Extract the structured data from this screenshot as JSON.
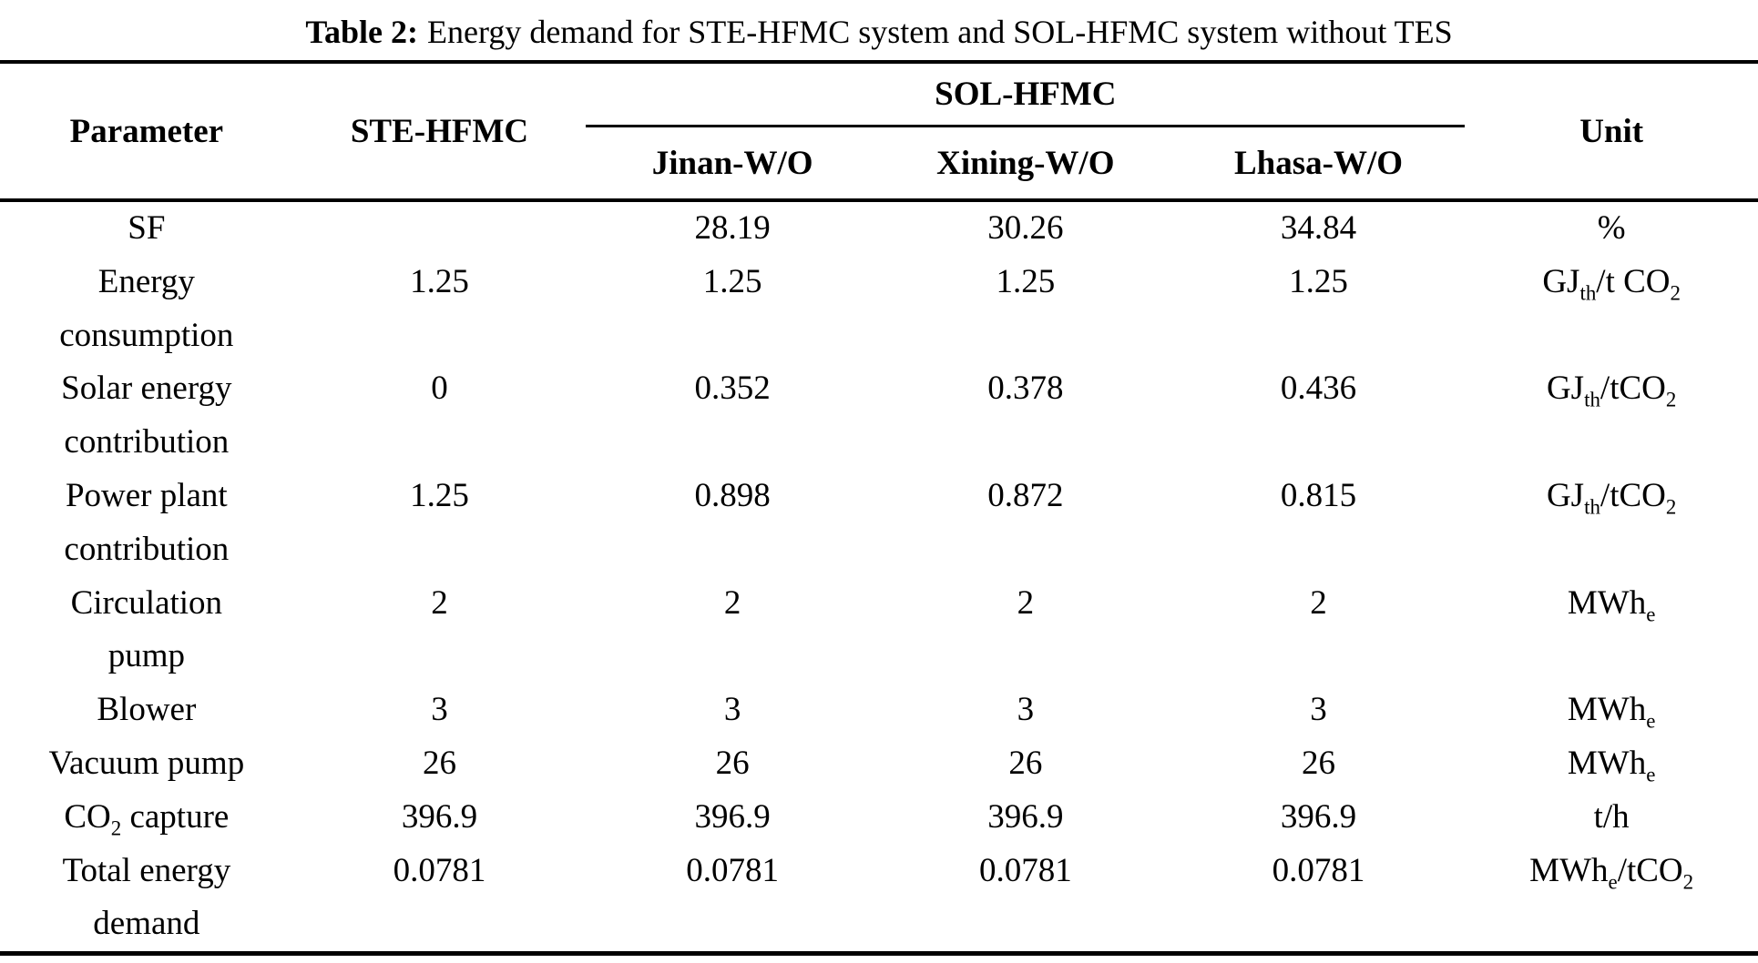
{
  "page": {
    "background": "#ffffff",
    "text_color": "#000000"
  },
  "caption": {
    "label": "Table 2:",
    "text": "Energy demand for STE-HFMC system and SOL-HFMC system without TES"
  },
  "table": {
    "columns": {
      "parameter": "Parameter",
      "ste": "STE-HFMC",
      "sol_group": "SOL-HFMC",
      "sol_subcolumns": [
        "Jinan-W/O",
        "Xining-W/O",
        "Lhasa-W/O"
      ],
      "unit": "Unit"
    },
    "rows": [
      {
        "label": "SF",
        "values": [
          "",
          "28.19",
          "30.26",
          "34.84"
        ],
        "unit": [
          {
            "t": "%"
          }
        ]
      },
      {
        "label": "Energy\nconsumption",
        "values": [
          "1.25",
          "1.25",
          "1.25",
          "1.25"
        ],
        "unit": [
          {
            "t": "GJ"
          },
          {
            "t": "th",
            "sub": true
          },
          {
            "t": "/t CO"
          },
          {
            "t": "2",
            "sub": true
          }
        ]
      },
      {
        "label": "Solar energy\ncontribution",
        "values": [
          "0",
          "0.352",
          "0.378",
          "0.436"
        ],
        "unit": [
          {
            "t": "GJ"
          },
          {
            "t": "th",
            "sub": true
          },
          {
            "t": "/tCO"
          },
          {
            "t": "2",
            "sub": true
          }
        ]
      },
      {
        "label": "Power plant\ncontribution",
        "values": [
          "1.25",
          "0.898",
          "0.872",
          "0.815"
        ],
        "unit": [
          {
            "t": "GJ"
          },
          {
            "t": "th",
            "sub": true
          },
          {
            "t": "/tCO"
          },
          {
            "t": "2",
            "sub": true
          }
        ]
      },
      {
        "label": "Circulation\npump",
        "values": [
          "2",
          "2",
          "2",
          "2"
        ],
        "unit": [
          {
            "t": "MWh"
          },
          {
            "t": "e",
            "sub": true
          }
        ]
      },
      {
        "label": "Blower",
        "values": [
          "3",
          "3",
          "3",
          "3"
        ],
        "unit": [
          {
            "t": "MWh"
          },
          {
            "t": "e",
            "sub": true
          }
        ]
      },
      {
        "label": "Vacuum pump",
        "values": [
          "26",
          "26",
          "26",
          "26"
        ],
        "unit": [
          {
            "t": "MWh"
          },
          {
            "t": "e",
            "sub": true
          }
        ]
      },
      {
        "label": [
          {
            "t": "CO"
          },
          {
            "t": "2",
            "sub": true
          },
          {
            "t": " capture"
          }
        ],
        "values": [
          "396.9",
          "396.9",
          "396.9",
          "396.9"
        ],
        "unit": [
          {
            "t": "t/h"
          }
        ]
      },
      {
        "label": "Total energy\ndemand",
        "values": [
          "0.0781",
          "0.0781",
          "0.0781",
          "0.0781"
        ],
        "unit": [
          {
            "t": "MWh"
          },
          {
            "t": "e",
            "sub": true
          },
          {
            "t": "/tCO"
          },
          {
            "t": "2",
            "sub": true
          }
        ]
      }
    ]
  }
}
